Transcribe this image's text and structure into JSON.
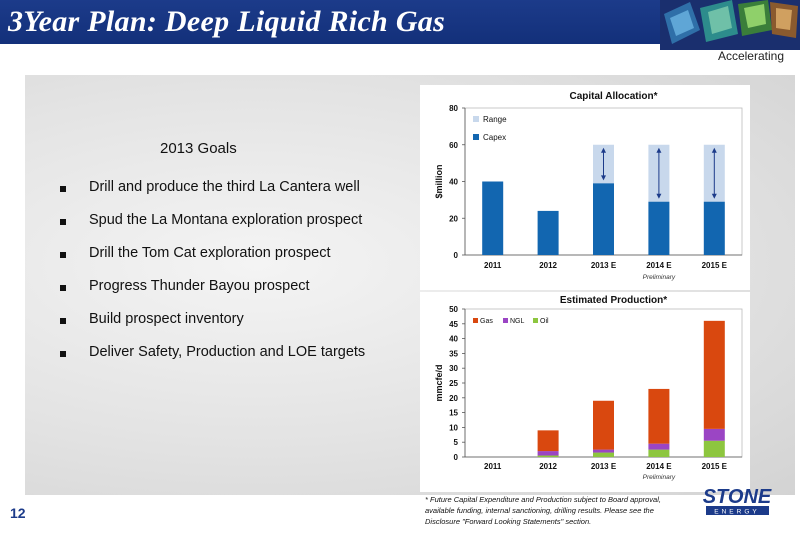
{
  "header": {
    "title": "3Year Plan:  Deep Liquid Rich Gas",
    "tagline": "Accelerating"
  },
  "goals": {
    "title": "2013 Goals",
    "items": [
      "Drill and produce the third La Cantera well",
      "Spud the La Montana exploration prospect",
      "Drill the Tom Cat exploration prospect",
      "Progress Thunder Bayou prospect",
      "Build prospect inventory",
      "Deliver Safety, Production and LOE targets"
    ]
  },
  "chart_data": [
    {
      "type": "bar",
      "title": "Capital Allocation*",
      "ylabel": "$million",
      "categories": [
        "2011",
        "2012",
        "2013 E",
        "2014 E",
        "2015 E"
      ],
      "series": [
        {
          "name": "Capex",
          "values": [
            40,
            24,
            39,
            29,
            29
          ]
        },
        {
          "name": "Range",
          "values": [
            null,
            null,
            60,
            60,
            60
          ]
        }
      ],
      "yticks": [
        0,
        20,
        40,
        60,
        80
      ],
      "ylim": [
        0,
        80
      ],
      "note": "Preliminary",
      "legend": "top-left",
      "colors": {
        "Capex": "#1266b0",
        "Range": "#c8d8ec"
      }
    },
    {
      "type": "bar",
      "stacked": true,
      "title": "Estimated Production*",
      "ylabel": "mmcfe/d",
      "categories": [
        "2011",
        "2012",
        "2013 E",
        "2014 E",
        "2015 E"
      ],
      "series": [
        {
          "name": "Oil",
          "values": [
            0,
            0.5,
            1.5,
            2.5,
            5.5
          ]
        },
        {
          "name": "NGL",
          "values": [
            0,
            1.5,
            1.0,
            2.0,
            4.0
          ]
        },
        {
          "name": "Gas",
          "values": [
            0,
            7.0,
            16.5,
            18.5,
            36.5
          ]
        }
      ],
      "legend_order": [
        "Gas",
        "NGL",
        "Oil"
      ],
      "yticks": [
        0,
        5,
        10,
        15,
        20,
        25,
        30,
        35,
        40,
        45,
        50
      ],
      "ylim": [
        0,
        50
      ],
      "note": "Preliminary",
      "legend": "top-left",
      "colors": {
        "Gas": "#d9480f",
        "NGL": "#9b45c4",
        "Oil": "#8dc63f"
      }
    }
  ],
  "footer": {
    "page_number": "12",
    "footnote_lines": [
      "* Future Capital Expenditure and Production subject to Board approval,",
      "available funding, internal  sanctioning, drilling results.  Please see the",
      "Disclosure \"Forward Looking Statements\" section."
    ],
    "brand_name": "STONE",
    "brand_sub": "ENERGY"
  }
}
